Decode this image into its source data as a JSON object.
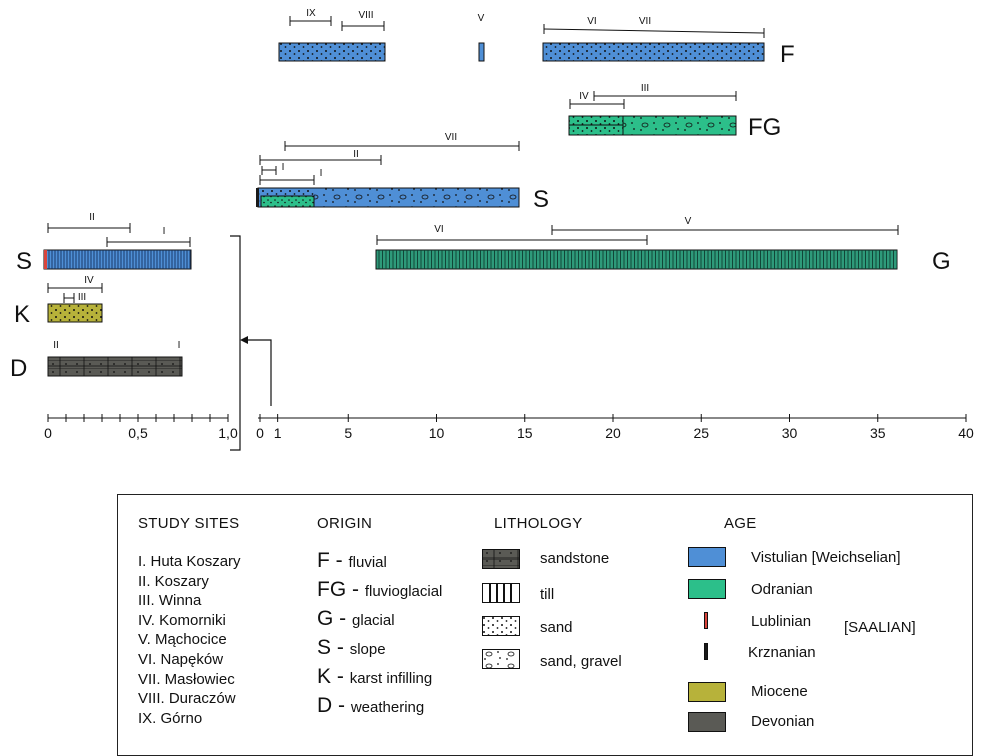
{
  "colors": {
    "vistulian": "#4f8fd6",
    "odranian": "#2cbf8a",
    "lublinian": "#d9443b",
    "krznanian": "#1a1a1a",
    "miocene": "#b7b23a",
    "devonian": "#5a5a55",
    "till_green": "#2e9a7a"
  },
  "axes": {
    "left": {
      "ticks": [
        {
          "label": "0",
          "value": 0
        },
        {
          "label": "0,5",
          "value": 0.5
        },
        {
          "label": "1,0",
          "value": 1.0
        }
      ],
      "minor_step": 0.1
    },
    "right": {
      "ticks": [
        {
          "label": "0",
          "value": 0
        },
        {
          "label": "1",
          "value": 1
        },
        {
          "label": "5",
          "value": 5
        },
        {
          "label": "10",
          "value": 10
        },
        {
          "label": "15",
          "value": 15
        },
        {
          "label": "20",
          "value": 20
        },
        {
          "label": "25",
          "value": 25
        },
        {
          "label": "30",
          "value": 30
        },
        {
          "label": "35",
          "value": 35
        },
        {
          "label": "40",
          "value": 40
        }
      ]
    }
  },
  "rows": {
    "F": "F",
    "FG": "FG",
    "S_right": "S",
    "G": "G",
    "S_left": "S",
    "K": "K",
    "D": "D"
  },
  "ranges": {
    "F_IX": "IX",
    "F_VIII": "VIII",
    "F_V": "V",
    "F_VI": "VI",
    "F_VII": "VII",
    "FG_IV": "IV",
    "FG_III": "III",
    "S_VII": "VII",
    "S_II": "II",
    "S_I_short": "I",
    "S_I": "I",
    "G_VI": "VI",
    "G_V": "V",
    "SL_II": "II",
    "SL_I": "I",
    "K_IV": "IV",
    "K_III": "III",
    "D_II": "II",
    "D_I": "I"
  },
  "legend": {
    "study_sites": {
      "heading": "STUDY SITES",
      "items": [
        "I. Huta Koszary",
        "II. Koszary",
        "III. Winna",
        "IV. Komorniki",
        "V. Mąchocice",
        "VI. Napęków",
        "VII. Masłowiec",
        "VIII. Duraczów",
        "IX. Górno"
      ]
    },
    "origin": {
      "heading": "ORIGIN",
      "items": [
        {
          "code": "F",
          "sep": " - ",
          "label": "fluvial"
        },
        {
          "code": "FG",
          "sep": " - ",
          "label": "fluvioglacial"
        },
        {
          "code": "G",
          "sep": " - ",
          "label": "glacial"
        },
        {
          "code": "S",
          "sep": " - ",
          "label": "slope"
        },
        {
          "code": "K",
          "sep": " - ",
          "label": "karst infilling"
        },
        {
          "code": "D",
          "sep": " - ",
          "label": "weathering"
        }
      ]
    },
    "lithology": {
      "heading": "LITHOLOGY",
      "items": [
        "sandstone",
        "till",
        "sand",
        "sand, gravel"
      ]
    },
    "age": {
      "heading": "AGE",
      "items": [
        "Vistulian [Weichselian]",
        "Odranian",
        "Lublinian",
        "Krznanian",
        "Miocene",
        "Devonian"
      ],
      "saalian": "[SAALIAN]"
    }
  }
}
